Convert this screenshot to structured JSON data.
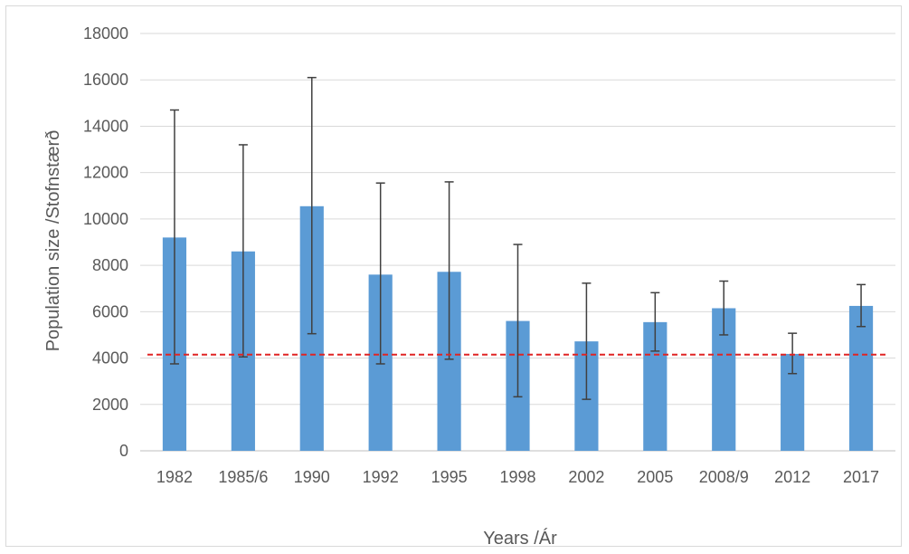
{
  "chart_data": {
    "type": "bar",
    "xlabel": "Years /Ár",
    "ylabel": "Population size /Stofnstærð",
    "ylim": [
      0,
      18000
    ],
    "yticks": [
      0,
      2000,
      4000,
      6000,
      8000,
      10000,
      12000,
      14000,
      16000,
      18000
    ],
    "grid": "horizontal",
    "legend": "none",
    "categories": [
      "1982",
      "1985/6",
      "1990",
      "1992",
      "1995",
      "1998",
      "2002",
      "2005",
      "2008/9",
      "2012",
      "2017"
    ],
    "values": [
      9200,
      8600,
      10550,
      7600,
      7720,
      5600,
      4720,
      5550,
      6150,
      4180,
      6250
    ],
    "error_low": [
      3750,
      4050,
      5050,
      3750,
      3950,
      2330,
      2220,
      4300,
      5000,
      3330,
      5360
    ],
    "error_high": [
      14700,
      13200,
      16100,
      11550,
      11600,
      8900,
      7230,
      6820,
      7320,
      5070,
      7170
    ],
    "reference_line": {
      "value": 4150,
      "style": "dashed",
      "color": "#e02424"
    },
    "colors": {
      "bar": "#5b9bd5",
      "error_bar": "#404040",
      "grid": "#d9d9d9",
      "axis": "#bfbfbf",
      "text": "#595959"
    }
  }
}
